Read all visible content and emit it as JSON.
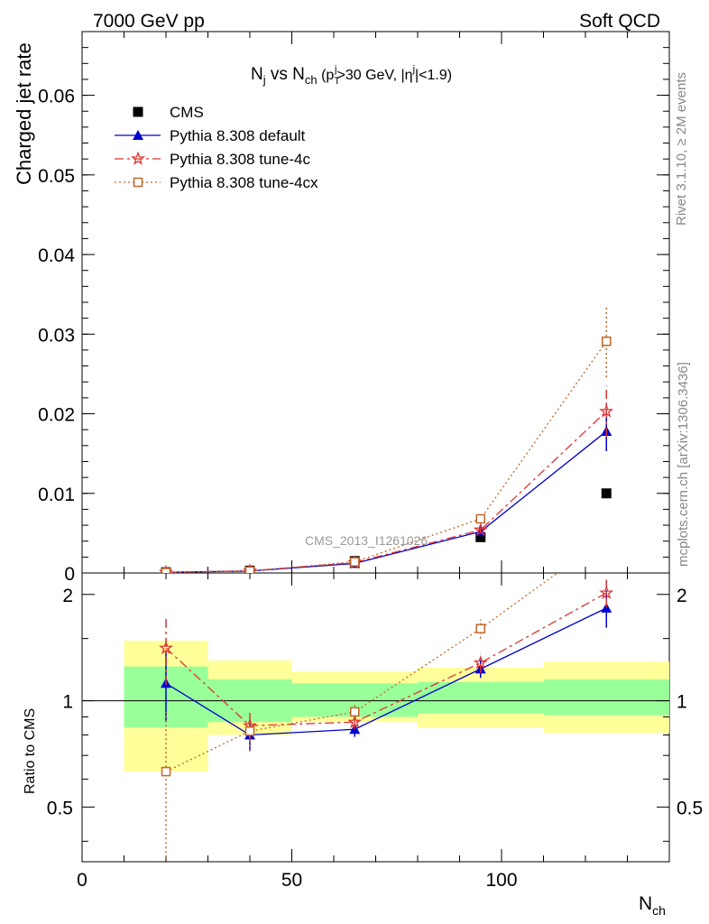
{
  "header": {
    "left": "7000 GeV pp",
    "right": "Soft QCD"
  },
  "side_labels": {
    "top": "Rivet 3.1.10, ≥ 2M events",
    "bottom": "mcplots.cern.ch [arXiv:1306.3436]"
  },
  "watermark": "CMS_2013_I1261026",
  "chart_data": {
    "type": "scatter",
    "title": "N_j vs N_ch (p_T^j>30 GeV, |η^j|<1.9)",
    "title_parts": {
      "a": "N",
      "a_sub": "j",
      "b": " vs N",
      "b_sub": "ch",
      "c": " (p",
      "c_sub": "T",
      "c_sup": "j",
      "d": ">30 GeV, |η",
      "d_sup": "j",
      "e": "|<1.9)"
    },
    "xlabel": "N",
    "xlabel_sub": "ch",
    "ylabel": "Charged jet rate",
    "ratio_ylabel": "Ratio to CMS",
    "xlim": [
      0,
      140
    ],
    "ylim": [
      0,
      0.068
    ],
    "ratio_ylim": [
      0.35,
      2.3
    ],
    "x_ticks": [
      "0",
      "50",
      "100"
    ],
    "y_ticks": [
      "0",
      "0.01",
      "0.02",
      "0.03",
      "0.04",
      "0.05",
      "0.06"
    ],
    "ratio_ticks": [
      "0.5",
      "1",
      "2"
    ],
    "legend_placement": "top-left",
    "bins": [
      [
        10,
        30
      ],
      [
        30,
        50
      ],
      [
        50,
        80
      ],
      [
        80,
        110
      ],
      [
        110,
        140
      ]
    ],
    "x": [
      20,
      40,
      65,
      95,
      125
    ],
    "band_inner": [
      [
        0.84,
        1.25
      ],
      [
        0.87,
        1.15
      ],
      [
        0.9,
        1.12
      ],
      [
        0.92,
        1.13
      ],
      [
        0.91,
        1.15
      ]
    ],
    "band_outer": [
      [
        0.63,
        1.48
      ],
      [
        0.8,
        1.3
      ],
      [
        0.87,
        1.21
      ],
      [
        0.84,
        1.24
      ],
      [
        0.81,
        1.29
      ]
    ],
    "series": [
      {
        "name": "CMS",
        "color": "#000000",
        "marker": "square-filled",
        "values": [
          0.0001,
          0.0003,
          0.0015,
          0.0045,
          0.01
        ],
        "errors": [
          0,
          0,
          0,
          0,
          0
        ],
        "ratio": null
      },
      {
        "name": "Pythia 8.308 default",
        "color": "#0000cc",
        "marker": "triangle",
        "dash": "",
        "values": [
          8e-05,
          0.00025,
          0.0012,
          0.0052,
          0.0178
        ],
        "errors": [
          2e-05,
          4e-05,
          0.0001,
          0.0003,
          0.0025
        ],
        "ratio": [
          1.12,
          0.8,
          0.83,
          1.23,
          1.83
        ],
        "ratio_err": [
          0.25,
          0.08,
          0.04,
          0.07,
          0.22
        ]
      },
      {
        "name": "Pythia 8.308 tune-4c",
        "color": "#dd3333",
        "marker": "star",
        "dash": "10,4,3,4",
        "values": [
          9e-05,
          0.00027,
          0.0013,
          0.0054,
          0.0203
        ],
        "errors": [
          2e-05,
          4e-05,
          0.0001,
          0.0003,
          0.0032
        ],
        "ratio": [
          1.41,
          0.85,
          0.87,
          1.28,
          2.02
        ],
        "ratio_err": [
          0.3,
          0.08,
          0.04,
          0.08,
          0.18
        ]
      },
      {
        "name": "Pythia 8.308 tune-4cx",
        "color": "#c0662a",
        "marker": "square-open",
        "dash": "2,3",
        "values": [
          6e-05,
          0.00024,
          0.0014,
          0.0068,
          0.0291
        ],
        "errors": [
          2e-05,
          4e-05,
          0.0001,
          0.0004,
          0.0045
        ],
        "ratio": [
          0.63,
          0.82,
          0.93,
          1.6,
          2.9
        ],
        "ratio_err": [
          0.3,
          0.1,
          0.05,
          0.1,
          0.4
        ]
      }
    ]
  }
}
